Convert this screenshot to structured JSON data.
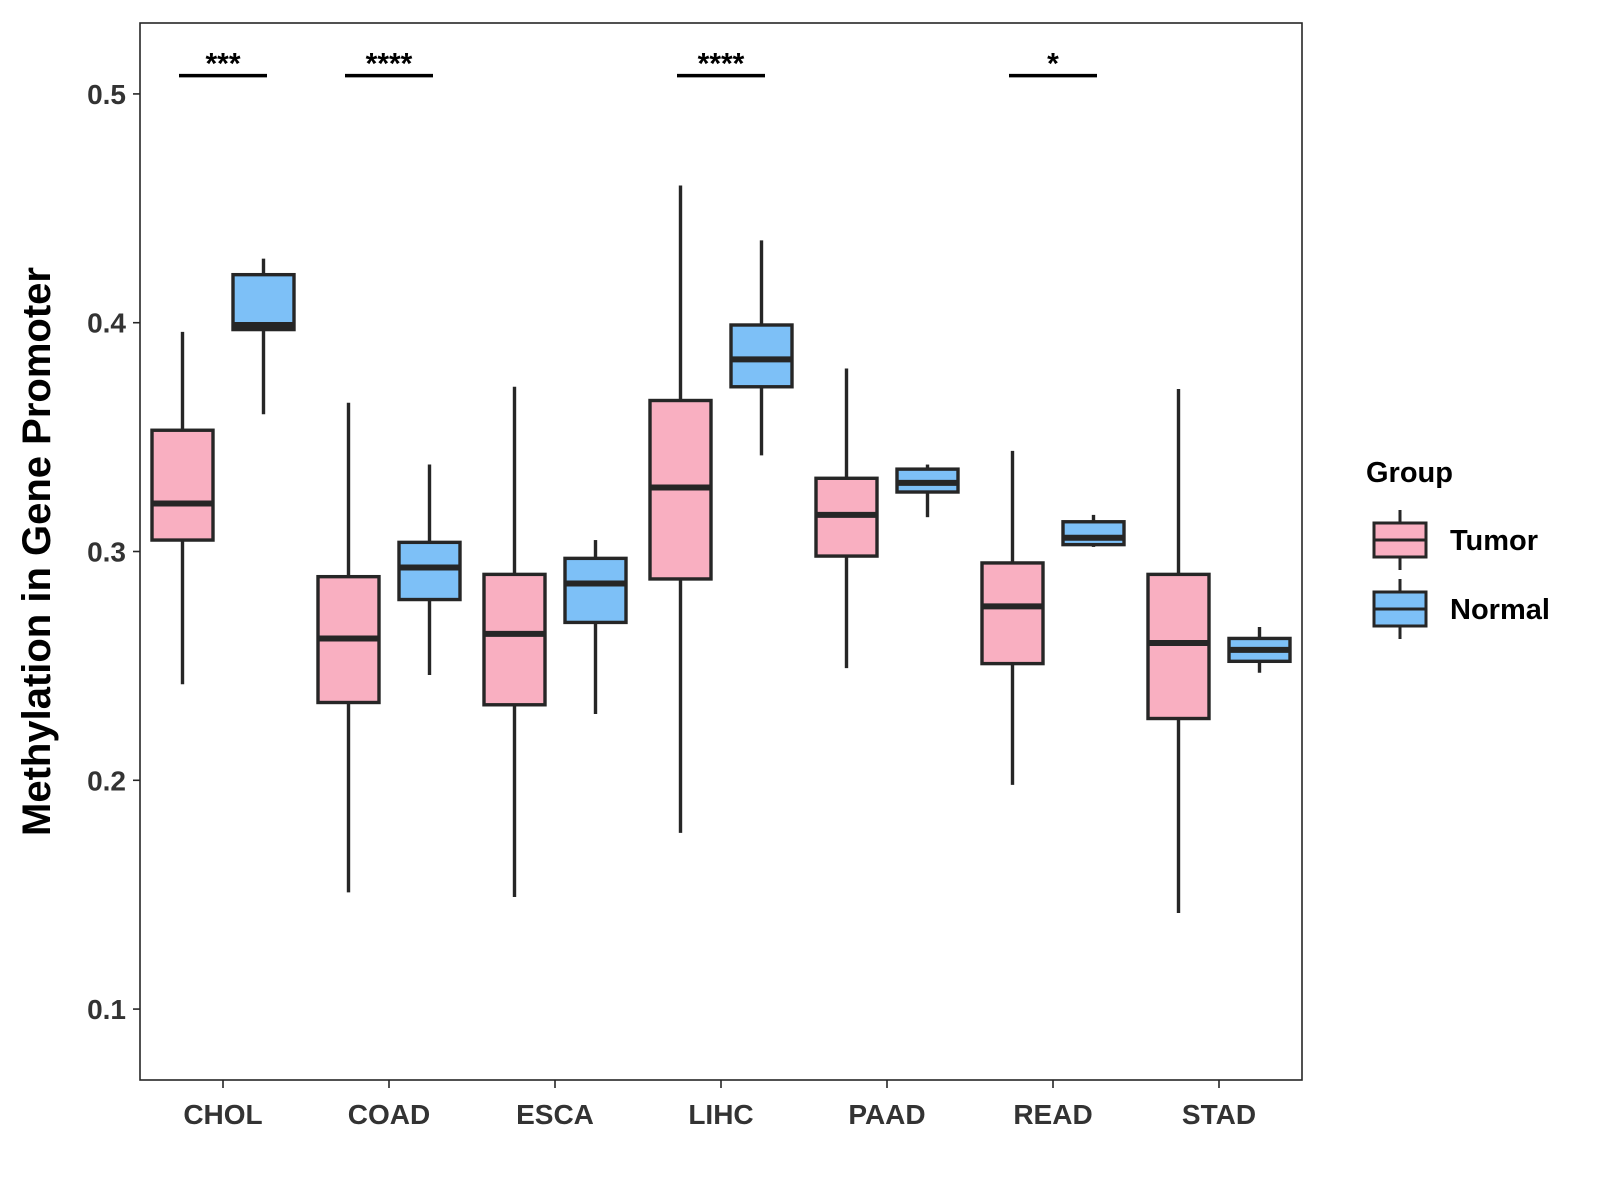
{
  "chart_data": {
    "type": "boxplot",
    "title": "",
    "xlabel": "",
    "ylabel": "Methylation in Gene Promoter",
    "ylim": [
      0.069,
      0.531
    ],
    "yticks": [
      0.1,
      0.2,
      0.3,
      0.4,
      0.5
    ],
    "ytick_labels": [
      "0.1",
      "0.2",
      "0.3",
      "0.4",
      "0.5"
    ],
    "categories": [
      "CHOL",
      "COAD",
      "ESCA",
      "LIHC",
      "PAAD",
      "READ",
      "STAD"
    ],
    "legend": {
      "title": "Group",
      "position": "right",
      "entries": [
        {
          "name": "Tumor",
          "color": "#F9AFC1"
        },
        {
          "name": "Normal",
          "color": "#7DC0F7"
        }
      ]
    },
    "series": [
      {
        "name": "Tumor",
        "color": "#F9AFC1",
        "boxes": [
          {
            "category": "CHOL",
            "whisker_low": 0.242,
            "q1": 0.305,
            "median": 0.321,
            "q3": 0.353,
            "whisker_high": 0.396
          },
          {
            "category": "COAD",
            "whisker_low": 0.151,
            "q1": 0.234,
            "median": 0.262,
            "q3": 0.289,
            "whisker_high": 0.365
          },
          {
            "category": "ESCA",
            "whisker_low": 0.149,
            "q1": 0.233,
            "median": 0.264,
            "q3": 0.29,
            "whisker_high": 0.372
          },
          {
            "category": "LIHC",
            "whisker_low": 0.177,
            "q1": 0.288,
            "median": 0.328,
            "q3": 0.366,
            "whisker_high": 0.46
          },
          {
            "category": "PAAD",
            "whisker_low": 0.249,
            "q1": 0.298,
            "median": 0.316,
            "q3": 0.332,
            "whisker_high": 0.38
          },
          {
            "category": "READ",
            "whisker_low": 0.198,
            "q1": 0.251,
            "median": 0.276,
            "q3": 0.295,
            "whisker_high": 0.344
          },
          {
            "category": "STAD",
            "whisker_low": 0.142,
            "q1": 0.227,
            "median": 0.26,
            "q3": 0.29,
            "whisker_high": 0.371
          }
        ]
      },
      {
        "name": "Normal",
        "color": "#7DC0F7",
        "boxes": [
          {
            "category": "CHOL",
            "whisker_low": 0.36,
            "q1": 0.397,
            "median": 0.399,
            "q3": 0.421,
            "whisker_high": 0.428
          },
          {
            "category": "COAD",
            "whisker_low": 0.246,
            "q1": 0.279,
            "median": 0.293,
            "q3": 0.304,
            "whisker_high": 0.338
          },
          {
            "category": "ESCA",
            "whisker_low": 0.229,
            "q1": 0.269,
            "median": 0.286,
            "q3": 0.297,
            "whisker_high": 0.305
          },
          {
            "category": "LIHC",
            "whisker_low": 0.342,
            "q1": 0.372,
            "median": 0.384,
            "q3": 0.399,
            "whisker_high": 0.436
          },
          {
            "category": "PAAD",
            "whisker_low": 0.315,
            "q1": 0.326,
            "median": 0.33,
            "q3": 0.336,
            "whisker_high": 0.338
          },
          {
            "category": "READ",
            "whisker_low": 0.302,
            "q1": 0.303,
            "median": 0.306,
            "q3": 0.313,
            "whisker_high": 0.316
          },
          {
            "category": "STAD",
            "whisker_low": 0.247,
            "q1": 0.252,
            "median": 0.257,
            "q3": 0.262,
            "whisker_high": 0.267
          }
        ]
      }
    ],
    "significance": [
      {
        "category": "CHOL",
        "label": "***",
        "y": 0.508
      },
      {
        "category": "COAD",
        "label": "****",
        "y": 0.508
      },
      {
        "category": "LIHC",
        "label": "****",
        "y": 0.508
      },
      {
        "category": "READ",
        "label": "*",
        "y": 0.508
      }
    ]
  }
}
